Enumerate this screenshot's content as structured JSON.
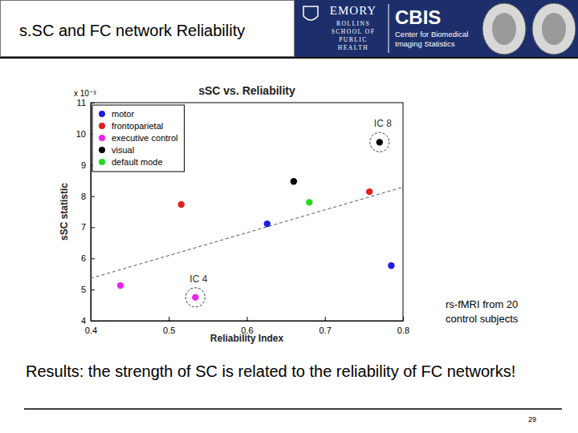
{
  "header": {
    "title": "s.SC and FC network Reliability",
    "logo_left": [
      "EMORY",
      "ROLLINS",
      "SCHOOL OF",
      "PUBLIC",
      "HEALTH"
    ],
    "logo_right": [
      "CBIS",
      "Center for Biomedical",
      "Imaging Statistics"
    ]
  },
  "chart_data": {
    "type": "scatter",
    "title": "sSC vs. Reliability",
    "x_label": "Reliability Index",
    "y_label": "sSC statistic",
    "y_scale_label": "x 10⁻³",
    "xlim": [
      0.4,
      0.8
    ],
    "xticks": [
      0.4,
      0.5,
      0.6,
      0.7,
      0.8
    ],
    "ylim": [
      4,
      11
    ],
    "yticks": [
      4,
      5,
      6,
      7,
      8,
      9,
      10,
      11
    ],
    "legend": "upper left",
    "grid": false,
    "series": [
      {
        "name": "motor",
        "color": "#1f1fe0",
        "marker": "circle",
        "x": [
          0.626,
          0.785
        ],
        "values": [
          7.11,
          5.77
        ]
      },
      {
        "name": "frontoparietal",
        "color": "#e01f1f",
        "marker": "circle",
        "x": [
          0.516,
          0.757
        ],
        "values": [
          7.73,
          8.14
        ]
      },
      {
        "name": "executive control",
        "color": "#ee22ee",
        "marker": "circle",
        "x": [
          0.438,
          0.534
        ],
        "values": [
          5.13,
          4.75
        ]
      },
      {
        "name": "visual",
        "color": "#000000",
        "marker": "circle",
        "x": [
          0.66,
          0.77
        ],
        "values": [
          8.47,
          9.73
        ]
      },
      {
        "name": "default mode",
        "color": "#22dd22",
        "marker": "circle",
        "x": [
          0.68
        ],
        "values": [
          7.8
        ]
      }
    ],
    "fit_line": {
      "x": [
        0.4,
        0.8
      ],
      "y": [
        5.36,
        8.29
      ],
      "line_style": "dashed",
      "color": "#555555"
    },
    "annotations": [
      {
        "text": "IC 8",
        "x": 0.77,
        "y": 9.73
      },
      {
        "text": "IC 4",
        "x": 0.534,
        "y": 4.75
      }
    ]
  },
  "note": "rs-fMRI from 20 control subjects",
  "conclusion": "Results: the strength of SC is related to the reliability of FC networks!",
  "page_number": 29
}
